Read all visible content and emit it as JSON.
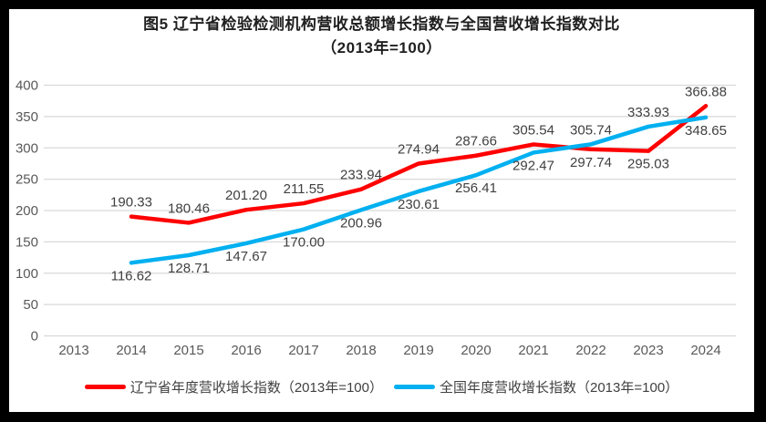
{
  "title": {
    "line1": "图5  辽宁省检验检测机构营收总额增长指数与全国营收增长指数对比",
    "line2": "（2013年=100）"
  },
  "chart_data": {
    "type": "line",
    "categories": [
      "2013",
      "2014",
      "2015",
      "2016",
      "2017",
      "2018",
      "2019",
      "2020",
      "2021",
      "2022",
      "2023",
      "2024"
    ],
    "series": [
      {
        "name": "辽宁省年度营收增长指数（2013年=100）",
        "color": "#FF0000",
        "start_category_index": 1,
        "values": [
          190.33,
          180.46,
          201.2,
          211.55,
          233.94,
          274.94,
          287.66,
          305.54,
          297.74,
          295.03,
          366.88
        ],
        "label_sides": [
          "above",
          "above",
          "above",
          "above",
          "above",
          "above",
          "above",
          "above",
          "below",
          "below",
          "above"
        ]
      },
      {
        "name": "全国年度营收增长指数（2013年=100）",
        "color": "#00B0F0",
        "start_category_index": 1,
        "values": [
          116.62,
          128.71,
          147.67,
          170.0,
          200.96,
          230.61,
          256.41,
          292.47,
          305.74,
          333.93,
          348.65
        ],
        "label_sides": [
          "below",
          "below",
          "below",
          "below",
          "below",
          "below",
          "below",
          "below",
          "above",
          "above",
          "below"
        ]
      }
    ],
    "ylim": [
      0,
      400
    ],
    "ytick_step": 50,
    "yticks": [
      0,
      50,
      100,
      150,
      200,
      250,
      300,
      350,
      400
    ],
    "grid": true,
    "legend_position": "bottom",
    "label_decimals": 2,
    "colors": {
      "grid": "#D9D9D9",
      "axis_text": "#595959",
      "data_label_text": "#404040",
      "frame_border": "#000000"
    }
  }
}
